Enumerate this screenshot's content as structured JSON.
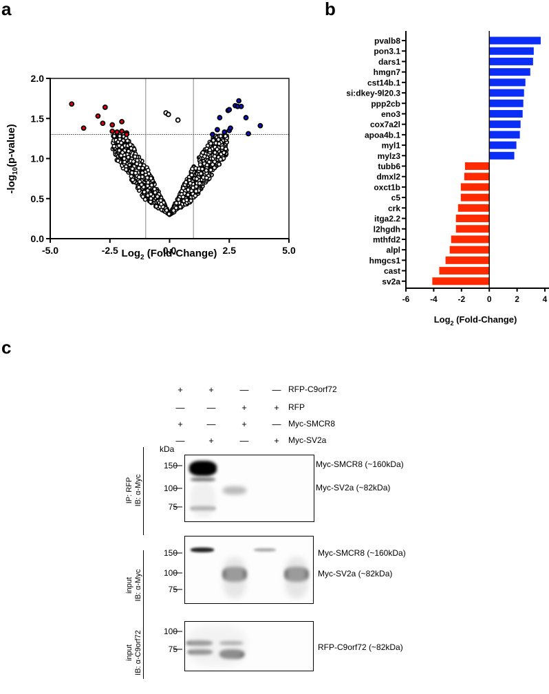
{
  "panels": {
    "a_letter": "a",
    "b_letter": "b",
    "c_letter": "c"
  },
  "chart_data": [
    {
      "type": "scatter",
      "title": "",
      "xlabel": "Log2 (Fold-Change)",
      "xlabel_main": "Log",
      "xlabel_sub": "2",
      "xlabel_rest": " (Fold-Change)",
      "ylabel_main": "-log",
      "ylabel_sub": "10",
      "ylabel_rest": "(p-value)",
      "xlim": [
        -5.0,
        5.0
      ],
      "ylim": [
        0.0,
        2.0
      ],
      "xticks": [
        "-5.0",
        "-2.5",
        "0.0",
        "2.5",
        "5.0"
      ],
      "yticks": [
        "0.0",
        "0.5",
        "1.0",
        "1.5",
        "2.0"
      ],
      "thresholds": {
        "fold_change_lines": [
          -1,
          1
        ],
        "pvalue_line": 1.3
      },
      "colors": {
        "down": "#e8000b",
        "up": "#0a12c8",
        "ns": "#ffffff",
        "edge": "#000000"
      },
      "series": [
        {
          "name": "downregulated",
          "color": "#e8000b",
          "points": [
            [
              -4.1,
              1.68
            ],
            [
              -3.6,
              1.38
            ],
            [
              -2.7,
              1.64
            ],
            [
              -3.0,
              1.53
            ],
            [
              -2.8,
              1.44
            ],
            [
              -2.4,
              1.42
            ],
            [
              -2.0,
              1.46
            ],
            [
              -2.4,
              1.34
            ],
            [
              -2.2,
              1.33
            ],
            [
              -2.0,
              1.34
            ],
            [
              -1.8,
              1.32
            ],
            [
              -1.8,
              1.3
            ]
          ]
        },
        {
          "name": "upregulated",
          "color": "#0a12c8",
          "points": [
            [
              1.8,
              1.3
            ],
            [
              2.0,
              1.36
            ],
            [
              2.3,
              1.33
            ],
            [
              2.5,
              1.35
            ],
            [
              2.55,
              1.38
            ],
            [
              2.1,
              1.51
            ],
            [
              2.45,
              1.6
            ],
            [
              2.5,
              1.61
            ],
            [
              2.75,
              1.66
            ],
            [
              2.85,
              1.65
            ],
            [
              2.9,
              1.72
            ],
            [
              3.0,
              1.65
            ],
            [
              3.2,
              1.51
            ],
            [
              3.3,
              1.31
            ],
            [
              3.8,
              1.41
            ]
          ]
        },
        {
          "name": "not-significant-high",
          "color": "#ffffff",
          "points": [
            [
              -0.15,
              1.57
            ],
            [
              -0.05,
              1.55
            ],
            [
              0.35,
              1.48
            ]
          ]
        }
      ]
    },
    {
      "type": "bar",
      "orientation": "horizontal",
      "xlabel": "Log2 (Fold-Change)",
      "xlabel_main": "Log",
      "xlabel_sub": "2",
      "xlabel_rest": " (Fold-Change)",
      "xlim": [
        -6,
        4
      ],
      "xticks": [
        "-6",
        "-4",
        "-2",
        "0",
        "2",
        "4"
      ],
      "colors": {
        "up": "#0a2ef5",
        "down": "#ff2a00"
      },
      "categories": [
        "pvalb8",
        "pon3.1",
        "dars1",
        "hmgn7",
        "cst14b.1",
        "si:dkey-9l20.3",
        "ppp2cb",
        "eno3",
        "cox7a2l",
        "apoa4b.1",
        "myl1",
        "mylz3",
        "tubb6",
        "dmxl2",
        "oxct1b",
        "c5",
        "crk",
        "itga2.2",
        "l2hgdh",
        "mthfd2",
        "alpl",
        "hmgcs1",
        "cast",
        "sv2a"
      ],
      "values": [
        3.7,
        3.2,
        3.15,
        2.95,
        2.6,
        2.5,
        2.45,
        2.4,
        2.25,
        2.2,
        1.95,
        1.8,
        -1.75,
        -1.8,
        -2.05,
        -2.05,
        -2.25,
        -2.4,
        -2.4,
        -2.75,
        -2.85,
        -3.15,
        -3.6,
        -4.1
      ]
    }
  ],
  "blot": {
    "conditions": [
      {
        "label": "RFP-C9orf72",
        "values": [
          "+",
          "+",
          "—",
          "—"
        ]
      },
      {
        "label": "RFP",
        "values": [
          "—",
          "—",
          "+",
          "+"
        ]
      },
      {
        "label": "Myc-SMCR8",
        "values": [
          "+",
          "—",
          "+",
          "—"
        ]
      },
      {
        "label": "Myc-SV2a",
        "values": [
          "—",
          "+",
          "—",
          "+"
        ]
      }
    ],
    "kda_label": "kDa",
    "panels": [
      {
        "side_line1": "IP: RFP",
        "side_line2": "IB: α-Myc",
        "markers": [
          "150",
          "100",
          "75"
        ],
        "annotations": [
          "Myc-SMCR8 (~160kDa)",
          "Myc-SV2a (~82kDa)"
        ]
      },
      {
        "side_line1": "input",
        "side_line2": "IB: α-Myc",
        "markers": [
          "150",
          "100",
          "75"
        ],
        "annotations": [
          "Myc-SMCR8 (~160kDa)",
          "Myc-SV2a (~82kDa)"
        ]
      },
      {
        "side_line1": "input",
        "side_line2": "IB: α-C9orf72",
        "markers": [
          "100",
          "75"
        ],
        "annotations": [
          "RFP-C9orf72 (~82kDa)"
        ]
      }
    ]
  }
}
